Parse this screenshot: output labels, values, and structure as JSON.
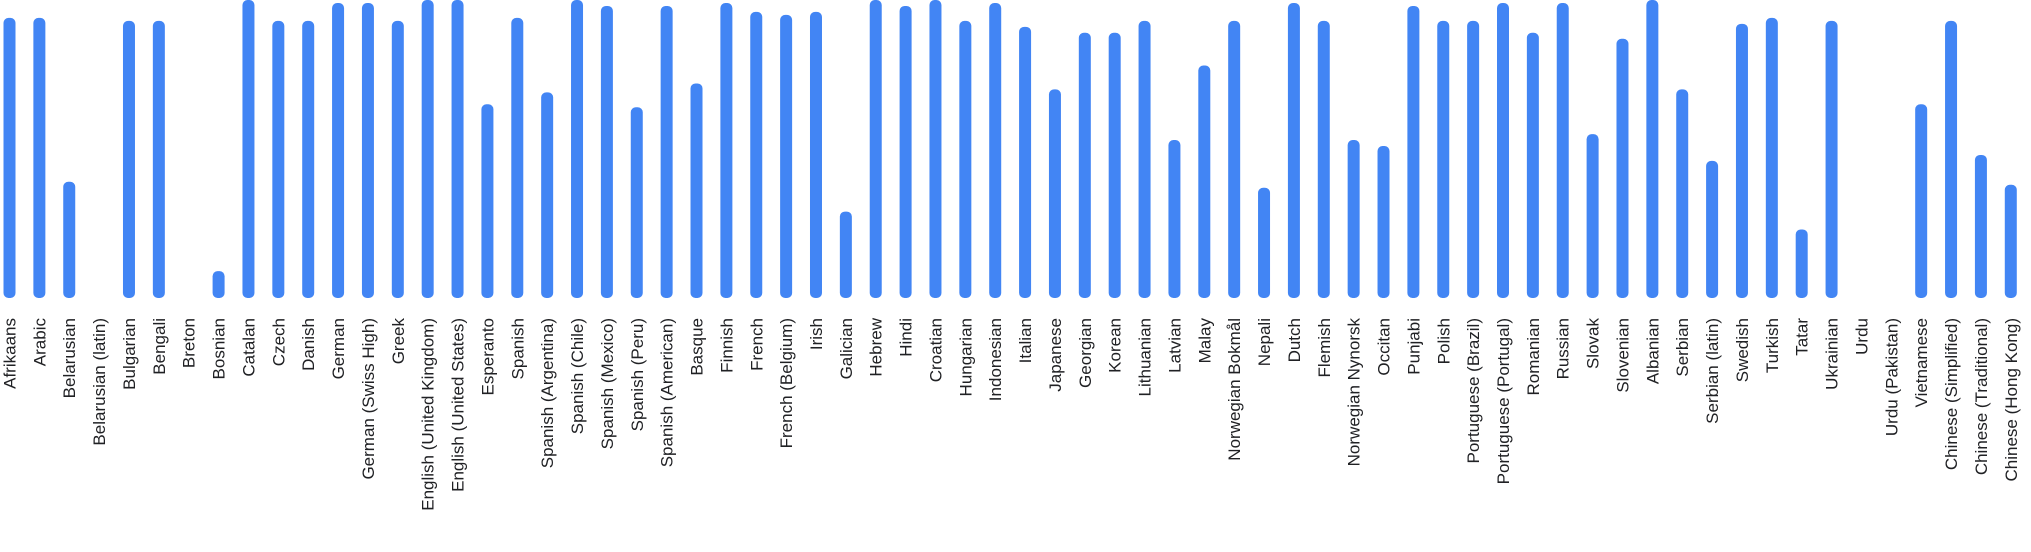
{
  "chart_data": {
    "type": "bar",
    "orientation": "vertical",
    "bar_color": "#4285f4",
    "grid": false,
    "legend": "none",
    "title": "",
    "xlabel": "",
    "ylabel": "",
    "ylim": [
      0,
      100
    ],
    "categories": [
      "Afrikaans",
      "Arabic",
      "Belarusian",
      "Belarusian (latin)",
      "Bulgarian",
      "Bengali",
      "Breton",
      "Bosnian",
      "Catalan",
      "Czech",
      "Danish",
      "German",
      "German (Swiss High)",
      "Greek",
      "English (United Kingdom)",
      "English (United States)",
      "Esperanto",
      "Spanish",
      "Spanish (Argentina)",
      "Spanish (Chile)",
      "Spanish (Mexico)",
      "Spanish (Peru)",
      "Spanish (American)",
      "Basque",
      "Finnish",
      "French",
      "French (Belgium)",
      "Irish",
      "Galician",
      "Hebrew",
      "Hindi",
      "Croatian",
      "Hungarian",
      "Indonesian",
      "Italian",
      "Japanese",
      "Georgian",
      "Korean",
      "Lithuanian",
      "Latvian",
      "Malay",
      "Norwegian Bokmål",
      "Nepali",
      "Dutch",
      "Flemish",
      "Norwegian Nynorsk",
      "Occitan",
      "Punjabi",
      "Polish",
      "Portuguese (Brazil)",
      "Portuguese (Portugal)",
      "Romanian",
      "Russian",
      "Slovak",
      "Slovenian",
      "Albanian",
      "Serbian",
      "Serbian (latin)",
      "Swedish",
      "Turkish",
      "Tatar",
      "Ukrainian",
      "Urdu",
      "Urdu (Pakistan)",
      "Vietnamese",
      "Chinese (Simplified)",
      "Chinese (Traditional)",
      "Chinese (Hong Kong)"
    ],
    "values": [
      94,
      94,
      39,
      0,
      93,
      93,
      0,
      9,
      100,
      93,
      93,
      99,
      99,
      93,
      100,
      100,
      65,
      94,
      69,
      100,
      98,
      64,
      98,
      72,
      99,
      96,
      95,
      96,
      29,
      100,
      98,
      100,
      93,
      99,
      91,
      70,
      89,
      89,
      93,
      53,
      78,
      93,
      37,
      99,
      93,
      53,
      51,
      98,
      93,
      93,
      99,
      89,
      99,
      55,
      87,
      100,
      70,
      46,
      92,
      94,
      23,
      93,
      0,
      0,
      65,
      93,
      48,
      38
    ]
  }
}
